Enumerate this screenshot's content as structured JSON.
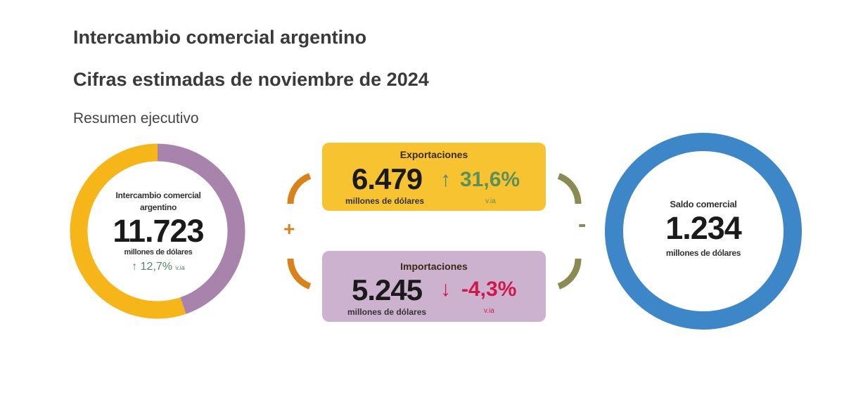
{
  "header": {
    "title": "Intercambio comercial argentino",
    "subtitle": "Cifras estimadas de noviembre de 2024",
    "section": "Resumen ejecutivo"
  },
  "total": {
    "label": "Intercambio comercial argentino",
    "value": "11.723",
    "unit": "millones de dólares",
    "change": "12,7%",
    "change_suffix": "v.ia",
    "arrow": "↑"
  },
  "exports": {
    "label": "Exportaciones",
    "value": "6.479",
    "unit": "millones de dólares",
    "change": "31,6%",
    "change_suffix": "v.ia",
    "arrow": "↑"
  },
  "imports": {
    "label": "Importaciones",
    "value": "5.245",
    "unit": "millones de dólares",
    "change": "-4,3%",
    "change_suffix": "v.ia",
    "arrow": "↓"
  },
  "balance": {
    "label": "Saldo comercial",
    "value": "1.234",
    "unit": "millones de dólares"
  },
  "operators": {
    "plus": "+",
    "minus": "-"
  },
  "colors": {
    "exports": "#f6b519",
    "imports": "#a883ab",
    "balance": "#3d86c8",
    "up": "#4e8a6a",
    "down": "#d0184a",
    "plus": "#d9821c",
    "minus": "#8a8a52"
  },
  "chart_data": [
    {
      "type": "pie",
      "title": "",
      "categories": [
        "Exportaciones",
        "Importaciones"
      ],
      "values": [
        6479,
        5245
      ],
      "unit": "millones de dólares"
    },
    {
      "type": "pie",
      "title": "",
      "categories": [
        "Saldo comercial"
      ],
      "values": [
        1234
      ],
      "unit": "millones de dólares"
    }
  ]
}
